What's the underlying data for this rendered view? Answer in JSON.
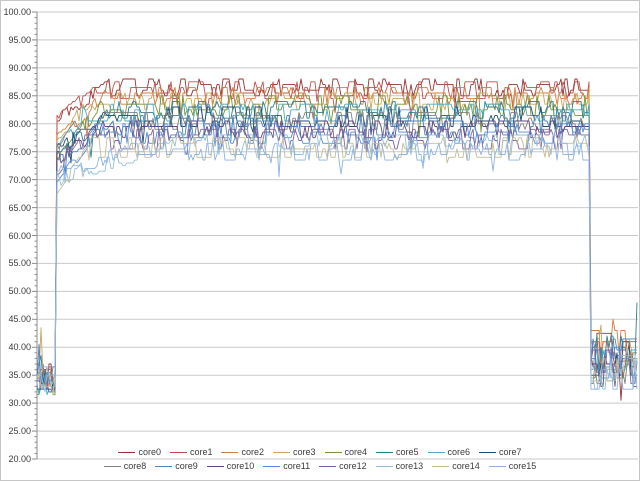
{
  "chart_data": {
    "type": "line",
    "title": "",
    "xlabel": "",
    "ylabel": "",
    "x_axis": {
      "tick_labels_visible": false
    },
    "y_axis": {
      "min": 20,
      "max": 100,
      "major_step": 5,
      "minor_step": 1,
      "tick_labels": [
        "100.00",
        "95.00",
        "90.00",
        "85.00",
        "80.00",
        "75.00",
        "70.00",
        "65.00",
        "60.00",
        "55.00",
        "50.00",
        "45.00",
        "40.00",
        "35.00",
        "30.00",
        "25.00",
        "20.00"
      ]
    },
    "grid": {
      "horizontal": true,
      "vertical": false,
      "color": "#c9c9c9"
    },
    "axis_color": "#8c8c8c",
    "legend": {
      "position": "bottom",
      "rows": [
        [
          0,
          1,
          2,
          3,
          4,
          5,
          6,
          7
        ],
        [
          8,
          9,
          10,
          11,
          12,
          13,
          14,
          15
        ]
      ]
    },
    "timeline": {
      "description": "fractions of x-range",
      "start_phase_end": 0.032,
      "jump_t": 0.032,
      "drop_t": 0.922,
      "end_t": 1.0
    },
    "series": [
      {
        "name": "core0",
        "color": "#943634",
        "start_mean": 34.8,
        "plateau_mean": 86.6,
        "end_mean": 39.5,
        "spikes": [
          {
            "t": 0.971,
            "v": 30.5
          }
        ]
      },
      {
        "name": "core1",
        "color": "#c0504d",
        "start_mean": 34.2,
        "plateau_mean": 85.9,
        "end_mean": 38.2,
        "spikes": []
      },
      {
        "name": "core2",
        "color": "#d77b3f",
        "start_mean": 33.8,
        "plateau_mean": 85.1,
        "end_mean": 40.1,
        "spikes": [
          {
            "t": 0.958,
            "v": 45.0
          }
        ]
      },
      {
        "name": "core3",
        "color": "#c8a85c",
        "start_mean": 34.5,
        "plateau_mean": 84.1,
        "end_mean": 38.8,
        "spikes": [
          {
            "t": 0.0067,
            "v": 43.5
          },
          {
            "t": 0.938,
            "v": 44.0
          }
        ]
      },
      {
        "name": "core4",
        "color": "#76923c",
        "start_mean": 33.6,
        "plateau_mean": 83.2,
        "end_mean": 37.4,
        "spikes": []
      },
      {
        "name": "core5",
        "color": "#2f7e91",
        "start_mean": 34.9,
        "plateau_mean": 82.6,
        "end_mean": 39.0,
        "spikes": [
          {
            "t": 0.0067,
            "v": 38.5
          },
          {
            "t": 0.998,
            "v": 48.0
          }
        ]
      },
      {
        "name": "core6",
        "color": "#4bacc6",
        "start_mean": 33.4,
        "plateau_mean": 82.0,
        "end_mean": 36.8,
        "spikes": []
      },
      {
        "name": "core7",
        "color": "#1f4e79",
        "start_mean": 34.0,
        "plateau_mean": 81.2,
        "end_mean": 37.9,
        "spikes": []
      },
      {
        "name": "core8",
        "color": "#808080",
        "start_mean": 34.6,
        "plateau_mean": 80.5,
        "end_mean": 36.2,
        "spikes": []
      },
      {
        "name": "core9",
        "color": "#4f81bd",
        "start_mean": 33.9,
        "plateau_mean": 79.8,
        "end_mean": 38.5,
        "spikes": [
          {
            "t": 0.0033,
            "v": 40.5
          }
        ]
      },
      {
        "name": "core10",
        "color": "#5f497a",
        "start_mean": 34.3,
        "plateau_mean": 78.9,
        "end_mean": 35.8,
        "spikes": []
      },
      {
        "name": "core11",
        "color": "#558ed5",
        "start_mean": 33.5,
        "plateau_mean": 78.2,
        "end_mean": 37.1,
        "spikes": []
      },
      {
        "name": "core12",
        "color": "#8064a2",
        "start_mean": 34.7,
        "plateau_mean": 77.3,
        "end_mean": 36.5,
        "spikes": []
      },
      {
        "name": "core13",
        "color": "#93bedb",
        "start_mean": 34.1,
        "plateau_mean": 76.3,
        "end_mean": 35.5,
        "ramp_from": 70.0,
        "ramp_len": 115,
        "spikes": []
      },
      {
        "name": "core14",
        "color": "#c4bd97",
        "start_mean": 33.7,
        "plateau_mean": 75.8,
        "end_mean": 36.9,
        "spikes": []
      },
      {
        "name": "core15",
        "color": "#8db4e2",
        "start_mean": 34.4,
        "plateau_mean": 75.1,
        "end_mean": 35.2,
        "ramp_from": 71.0,
        "ramp_len": 70,
        "spikes": []
      }
    ]
  }
}
